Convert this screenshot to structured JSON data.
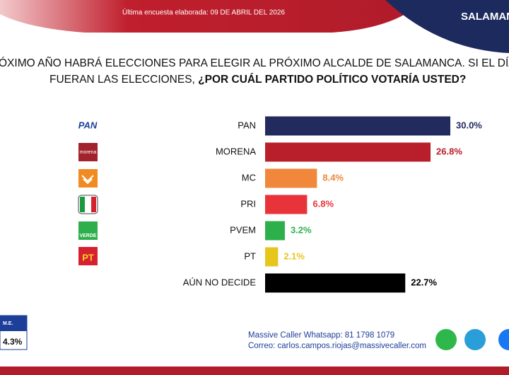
{
  "header": {
    "survey_date": "Última encuesta elaborada: 09 DE ABRIL DEL 2026",
    "city": "SALAMAN"
  },
  "question": {
    "line1": "ÓXIMO AÑO HABRÁ ELECCIONES PARA ELEGIR AL PRÓXIMO ALCALDE DE SALAMANCA. SI EL DÍA D",
    "line2_plain": "FUERAN LAS ELECCIONES, ",
    "line2_bold": "¿POR CUÁL PARTIDO POLÍTICO VOTARÍA USTED?"
  },
  "chart_data": {
    "type": "bar",
    "orientation": "horizontal",
    "categories": [
      "PAN",
      "MORENA",
      "MC",
      "PRI",
      "PVEM",
      "PT",
      "AÚN NO DECIDE"
    ],
    "values": [
      30.0,
      26.8,
      8.4,
      6.8,
      3.2,
      2.1,
      22.7
    ],
    "value_labels": [
      "30.0%",
      "26.8%",
      "8.4%",
      "6.8%",
      "3.2%",
      "2.1%",
      "22.7%"
    ],
    "colors": [
      "#232a5e",
      "#b81f2a",
      "#f0873a",
      "#e8333a",
      "#2db04b",
      "#e6c61c",
      "#000000"
    ],
    "label_colors": [
      "#232a5e",
      "#b81f2a",
      "#f0873a",
      "#e8333a",
      "#2db04b",
      "#e6c61c",
      "#000000"
    ],
    "xlim": [
      0,
      30
    ]
  },
  "logos": [
    "PAN",
    "morena",
    "VERDE",
    "PT"
  ],
  "margin": {
    "label": "M.E.",
    "value": "4.3%"
  },
  "footer": {
    "whatsapp": "Massive Caller Whatsapp: 81 1798 1079",
    "email": "Correo: carlos.campos.riojas@massivecaller.com"
  }
}
